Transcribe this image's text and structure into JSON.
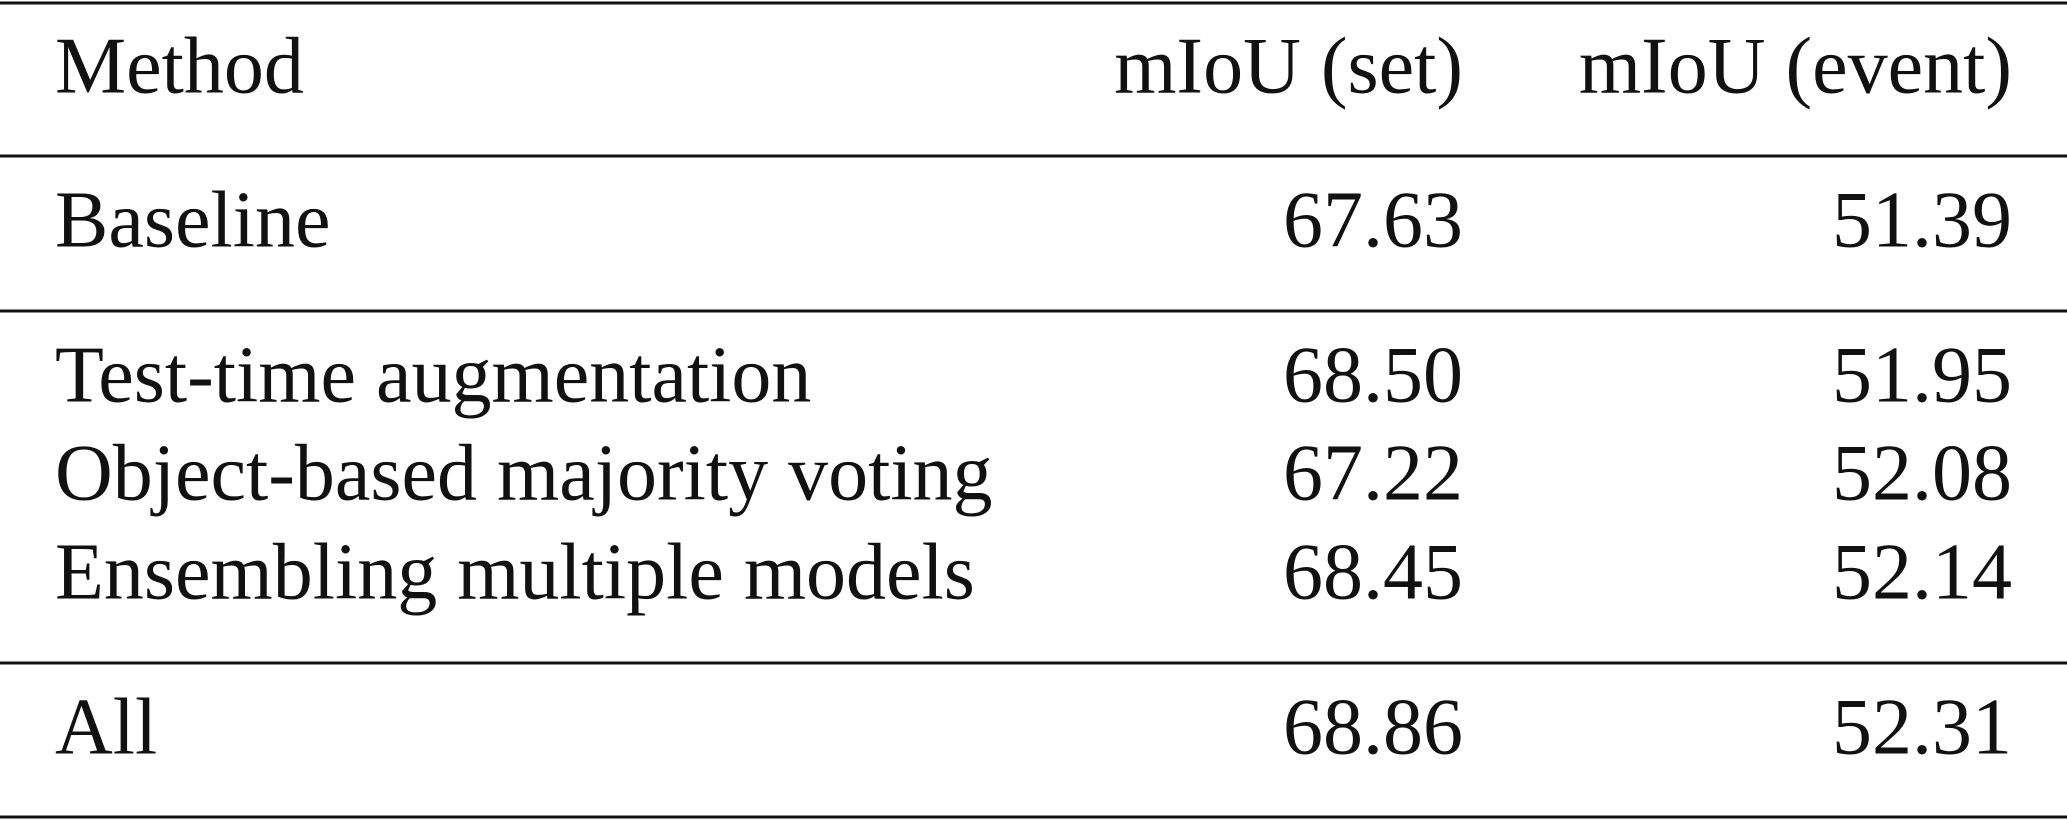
{
  "table": {
    "header": [
      "Method",
      "mIoU (set)",
      "mIoU (event)"
    ],
    "rows": [
      [
        "Baseline",
        "67.63",
        "51.39"
      ],
      [
        "Test-time augmentation",
        "68.50",
        "51.95"
      ],
      [
        "Object-based majority voting",
        "67.22",
        "52.08"
      ],
      [
        "Ensembling multiple models",
        "68.45",
        "52.14"
      ],
      [
        "All",
        "68.86",
        "52.31"
      ]
    ]
  }
}
